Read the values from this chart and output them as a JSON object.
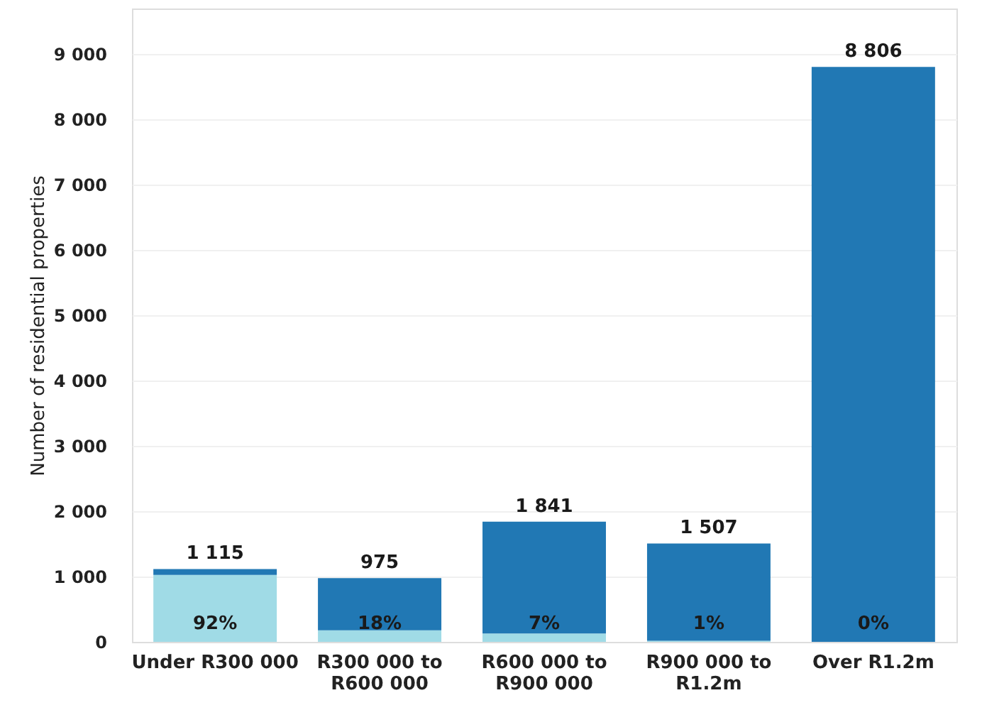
{
  "chart_data": {
    "type": "bar",
    "stacked": true,
    "ylabel": "Number of residential properties",
    "categories": [
      "Under R300 000",
      "R300 000 to R600 000",
      "R600 000 to R900 000",
      "R900 000 to R1.2m",
      "Over R1.2m"
    ],
    "series": [
      {
        "color": "#a0dbe6",
        "values": [
          1026,
          176,
          129,
          15,
          0
        ]
      },
      {
        "color": "#2178b4",
        "values": [
          89,
          799,
          1712,
          1492,
          8806
        ]
      }
    ],
    "totals": [
      "1 115",
      "975",
      "1 841",
      "1 507",
      "8 806"
    ],
    "annotations": [
      "92%",
      "18%",
      "7%",
      "1%",
      "0%"
    ],
    "ylim": [
      0,
      9700
    ],
    "yticks": [
      {
        "value": 0,
        "label": "0"
      },
      {
        "value": 1000,
        "label": "1 000"
      },
      {
        "value": 2000,
        "label": "2 000"
      },
      {
        "value": 3000,
        "label": "3 000"
      },
      {
        "value": 4000,
        "label": "4 000"
      },
      {
        "value": 5000,
        "label": "5 000"
      },
      {
        "value": 6000,
        "label": "6 000"
      },
      {
        "value": 7000,
        "label": "7 000"
      },
      {
        "value": 8000,
        "label": "8 000"
      },
      {
        "value": 9000,
        "label": "9 000"
      }
    ],
    "grid": "y"
  }
}
